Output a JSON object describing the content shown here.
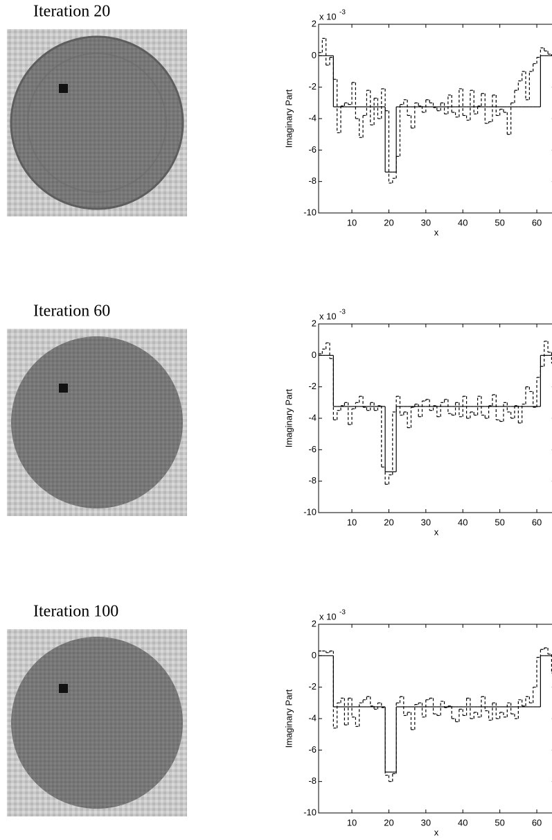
{
  "chart_data": [
    {
      "type": "step",
      "title": "Iteration 20",
      "xlabel": "x",
      "ylabel": "Imaginary Part",
      "y_multiplier": "x 10",
      "y_multiplier_exponent": "-3",
      "x": [
        1,
        2,
        3,
        4,
        5,
        6,
        7,
        8,
        9,
        10,
        11,
        12,
        13,
        14,
        15,
        16,
        17,
        18,
        19,
        20,
        21,
        22,
        23,
        24,
        25,
        26,
        27,
        28,
        29,
        30,
        31,
        32,
        33,
        34,
        35,
        36,
        37,
        38,
        39,
        40,
        41,
        42,
        43,
        44,
        45,
        46,
        47,
        48,
        49,
        50,
        51,
        52,
        53,
        54,
        55,
        56,
        57,
        58,
        59,
        60,
        61,
        62,
        63,
        64
      ],
      "series": [
        {
          "color": "#000000",
          "values": [
            0,
            0,
            0,
            0,
            -3.25,
            -3.25,
            -3.25,
            -3.25,
            -3.25,
            -3.25,
            -3.25,
            -3.25,
            -3.25,
            -3.25,
            -3.25,
            -3.25,
            -3.25,
            -3.25,
            -7.4,
            -7.4,
            -7.4,
            -3.25,
            -3.25,
            -3.25,
            -3.25,
            -3.25,
            -3.25,
            -3.25,
            -3.25,
            -3.25,
            -3.25,
            -3.25,
            -3.25,
            -3.25,
            -3.25,
            -3.25,
            -3.25,
            -3.25,
            -3.25,
            -3.25,
            -3.25,
            -3.25,
            -3.25,
            -3.25,
            -3.25,
            -3.25,
            -3.25,
            -3.25,
            -3.25,
            -3.25,
            -3.25,
            -3.25,
            -3.25,
            -3.25,
            -3.25,
            -3.25,
            -3.25,
            -3.25,
            -3.25,
            -3.25,
            0,
            0,
            0,
            0
          ]
        },
        {
          "color": "#000000",
          "dashed": true,
          "values": [
            0.2,
            1.1,
            -0.6,
            -0.1,
            -1.5,
            -4.9,
            -3.2,
            -3.0,
            -3.1,
            -1.7,
            -4.0,
            -5.2,
            -3.8,
            -2.2,
            -4.4,
            -2.7,
            -4.0,
            -2.1,
            -3.5,
            -8.1,
            -7.8,
            -6.4,
            -3.1,
            -2.8,
            -3.8,
            -4.6,
            -3.0,
            -3.2,
            -3.6,
            -2.8,
            -3.0,
            -3.3,
            -3.5,
            -3.0,
            -3.7,
            -2.5,
            -3.6,
            -3.9,
            -2.1,
            -3.8,
            -4.1,
            -2.2,
            -3.7,
            -3.2,
            -2.4,
            -4.3,
            -4.2,
            -2.5,
            -3.8,
            -3.4,
            -3.6,
            -5.0,
            -3.0,
            -2.2,
            -1.6,
            -1.0,
            -2.8,
            -1.0,
            -0.5,
            -0.1,
            0.5,
            0.3,
            0.1,
            0.0
          ]
        }
      ],
      "xlim": [
        1,
        65
      ],
      "ylim": [
        -10,
        2
      ],
      "xticks": [
        10,
        20,
        30,
        40,
        50,
        60
      ],
      "yticks": [
        -10,
        -8,
        -6,
        -4,
        -2,
        0,
        2
      ]
    },
    {
      "type": "step",
      "title": "Iteration 60",
      "xlabel": "x",
      "ylabel": "Imaginary Part",
      "y_multiplier": "x 10",
      "y_multiplier_exponent": "-3",
      "x": [
        1,
        2,
        3,
        4,
        5,
        6,
        7,
        8,
        9,
        10,
        11,
        12,
        13,
        14,
        15,
        16,
        17,
        18,
        19,
        20,
        21,
        22,
        23,
        24,
        25,
        26,
        27,
        28,
        29,
        30,
        31,
        32,
        33,
        34,
        35,
        36,
        37,
        38,
        39,
        40,
        41,
        42,
        43,
        44,
        45,
        46,
        47,
        48,
        49,
        50,
        51,
        52,
        53,
        54,
        55,
        56,
        57,
        58,
        59,
        60,
        61,
        62,
        63,
        64
      ],
      "series": [
        {
          "color": "#000000",
          "values": [
            0,
            0,
            0,
            0,
            -3.25,
            -3.25,
            -3.25,
            -3.25,
            -3.25,
            -3.25,
            -3.25,
            -3.25,
            -3.25,
            -3.25,
            -3.25,
            -3.25,
            -3.25,
            -3.25,
            -7.4,
            -7.4,
            -7.4,
            -3.25,
            -3.25,
            -3.25,
            -3.25,
            -3.25,
            -3.25,
            -3.25,
            -3.25,
            -3.25,
            -3.25,
            -3.25,
            -3.25,
            -3.25,
            -3.25,
            -3.25,
            -3.25,
            -3.25,
            -3.25,
            -3.25,
            -3.25,
            -3.25,
            -3.25,
            -3.25,
            -3.25,
            -3.25,
            -3.25,
            -3.25,
            -3.25,
            -3.25,
            -3.25,
            -3.25,
            -3.25,
            -3.25,
            -3.25,
            -3.25,
            -3.25,
            -3.25,
            -3.25,
            -3.25,
            0,
            0,
            0,
            0
          ]
        },
        {
          "color": "#000000",
          "dashed": true,
          "values": [
            0.1,
            0.4,
            0.8,
            -0.2,
            -4.1,
            -3.5,
            -3.2,
            -3.0,
            -4.4,
            -3.4,
            -3.0,
            -2.6,
            -3.3,
            -3.5,
            -3.0,
            -3.5,
            -3.2,
            -7.1,
            -8.2,
            -7.6,
            -3.6,
            -2.6,
            -3.8,
            -3.6,
            -4.6,
            -3.3,
            -3.1,
            -3.9,
            -2.9,
            -2.8,
            -3.5,
            -3.2,
            -3.9,
            -3.0,
            -2.8,
            -3.7,
            -3.8,
            -3.0,
            -3.9,
            -2.6,
            -4.0,
            -3.6,
            -3.8,
            -2.6,
            -3.8,
            -4.0,
            -3.2,
            -2.5,
            -4.1,
            -4.2,
            -3.0,
            -3.6,
            -4.0,
            -3.2,
            -4.3,
            -3.1,
            -2.0,
            -2.3,
            -3.3,
            -1.4,
            -0.7,
            0.9,
            0.2,
            -0.5
          ]
        }
      ],
      "xlim": [
        1,
        65
      ],
      "ylim": [
        -10,
        2
      ],
      "xticks": [
        10,
        20,
        30,
        40,
        50,
        60
      ],
      "yticks": [
        -10,
        -8,
        -6,
        -4,
        -2,
        0,
        2
      ]
    },
    {
      "type": "step",
      "title": "Iteration 100",
      "xlabel": "x",
      "ylabel": "Imaginary Part",
      "y_multiplier": "x 10",
      "y_multiplier_exponent": "-3",
      "x": [
        1,
        2,
        3,
        4,
        5,
        6,
        7,
        8,
        9,
        10,
        11,
        12,
        13,
        14,
        15,
        16,
        17,
        18,
        19,
        20,
        21,
        22,
        23,
        24,
        25,
        26,
        27,
        28,
        29,
        30,
        31,
        32,
        33,
        34,
        35,
        36,
        37,
        38,
        39,
        40,
        41,
        42,
        43,
        44,
        45,
        46,
        47,
        48,
        49,
        50,
        51,
        52,
        53,
        54,
        55,
        56,
        57,
        58,
        59,
        60,
        61,
        62,
        63,
        64
      ],
      "series": [
        {
          "color": "#000000",
          "values": [
            0,
            0,
            0,
            0,
            -3.25,
            -3.25,
            -3.25,
            -3.25,
            -3.25,
            -3.25,
            -3.25,
            -3.25,
            -3.25,
            -3.25,
            -3.25,
            -3.25,
            -3.25,
            -3.25,
            -7.4,
            -7.4,
            -7.4,
            -3.25,
            -3.25,
            -3.25,
            -3.25,
            -3.25,
            -3.25,
            -3.25,
            -3.25,
            -3.25,
            -3.25,
            -3.25,
            -3.25,
            -3.25,
            -3.25,
            -3.25,
            -3.25,
            -3.25,
            -3.25,
            -3.25,
            -3.25,
            -3.25,
            -3.25,
            -3.25,
            -3.25,
            -3.25,
            -3.25,
            -3.25,
            -3.25,
            -3.25,
            -3.25,
            -3.25,
            -3.25,
            -3.25,
            -3.25,
            -3.25,
            -3.25,
            -3.25,
            -3.25,
            -3.25,
            0,
            0,
            0,
            0
          ]
        },
        {
          "color": "#000000",
          "dashed": true,
          "values": [
            0.3,
            0.3,
            0.2,
            0.3,
            -4.6,
            -3.0,
            -2.7,
            -4.4,
            -2.7,
            -3.9,
            -4.5,
            -3.0,
            -2.8,
            -2.6,
            -3.2,
            -3.4,
            -3.0,
            -3.3,
            -7.6,
            -8.0,
            -7.5,
            -3.0,
            -2.6,
            -3.8,
            -3.6,
            -4.7,
            -3.1,
            -3.0,
            -3.9,
            -2.8,
            -2.7,
            -3.7,
            -3.8,
            -2.9,
            -3.3,
            -3.2,
            -4.0,
            -4.2,
            -3.4,
            -3.8,
            -2.7,
            -4.0,
            -3.6,
            -3.9,
            -2.6,
            -3.5,
            -4.1,
            -3.0,
            -4.0,
            -3.6,
            -3.9,
            -3.0,
            -3.7,
            -4.0,
            -2.8,
            -3.2,
            -2.6,
            -3.0,
            -2.0,
            -0.1,
            0.4,
            0.5,
            0.1,
            -1.1
          ]
        }
      ],
      "xlim": [
        1,
        65
      ],
      "ylim": [
        -10,
        2
      ],
      "xticks": [
        10,
        20,
        30,
        40,
        50,
        60
      ],
      "yticks": [
        -10,
        -8,
        -6,
        -4,
        -2,
        0,
        2
      ]
    }
  ]
}
